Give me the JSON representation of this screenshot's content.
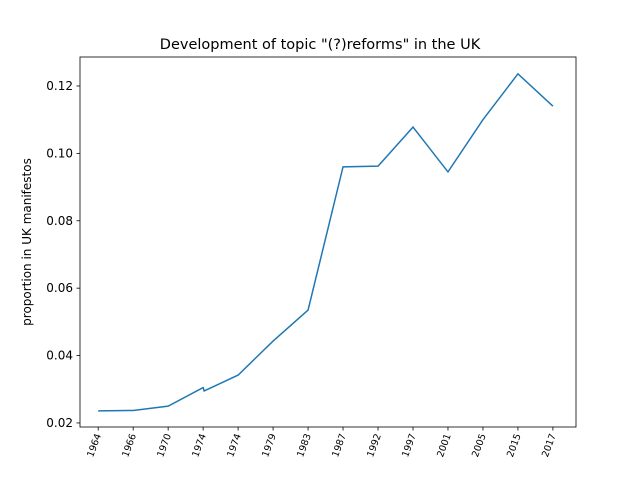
{
  "chart_data": {
    "type": "line",
    "title": "Development of topic \"(?)reforms\" in the UK",
    "y_label": "proportion in UK manifestos",
    "x": [
      0,
      1,
      2,
      3,
      3.03,
      4,
      5,
      6,
      7,
      8,
      9,
      10,
      11,
      12,
      13
    ],
    "series": [
      {
        "name": "(?)reforms",
        "color": "#1f77b4",
        "values": [
          0.0236,
          0.0237,
          0.025,
          0.0305,
          0.0295,
          0.0342,
          0.0443,
          0.0535,
          0.096,
          0.0962,
          0.1078,
          0.0945,
          0.11,
          0.1236,
          0.114
        ]
      }
    ],
    "xlim": [
      -0.52,
      13.66
    ],
    "xticks": [
      {
        "value": 0,
        "label": "1964"
      },
      {
        "value": 1,
        "label": "1966"
      },
      {
        "value": 2,
        "label": "1970"
      },
      {
        "value": 3,
        "label": "1974"
      },
      {
        "value": 4,
        "label": "1974"
      },
      {
        "value": 5,
        "label": "1979"
      },
      {
        "value": 6,
        "label": "1983"
      },
      {
        "value": 7,
        "label": "1987"
      },
      {
        "value": 8,
        "label": "1992"
      },
      {
        "value": 9,
        "label": "1997"
      },
      {
        "value": 10,
        "label": "2001"
      },
      {
        "value": 11,
        "label": "2005"
      },
      {
        "value": 12,
        "label": "2015"
      },
      {
        "value": 13,
        "label": "2017"
      }
    ],
    "ylim": [
      0.0188,
      0.1286
    ],
    "yticks": [
      0.02,
      0.04,
      0.06,
      0.08,
      {
        "value": 0.1,
        "label": "0.10"
      },
      0.12
    ]
  }
}
